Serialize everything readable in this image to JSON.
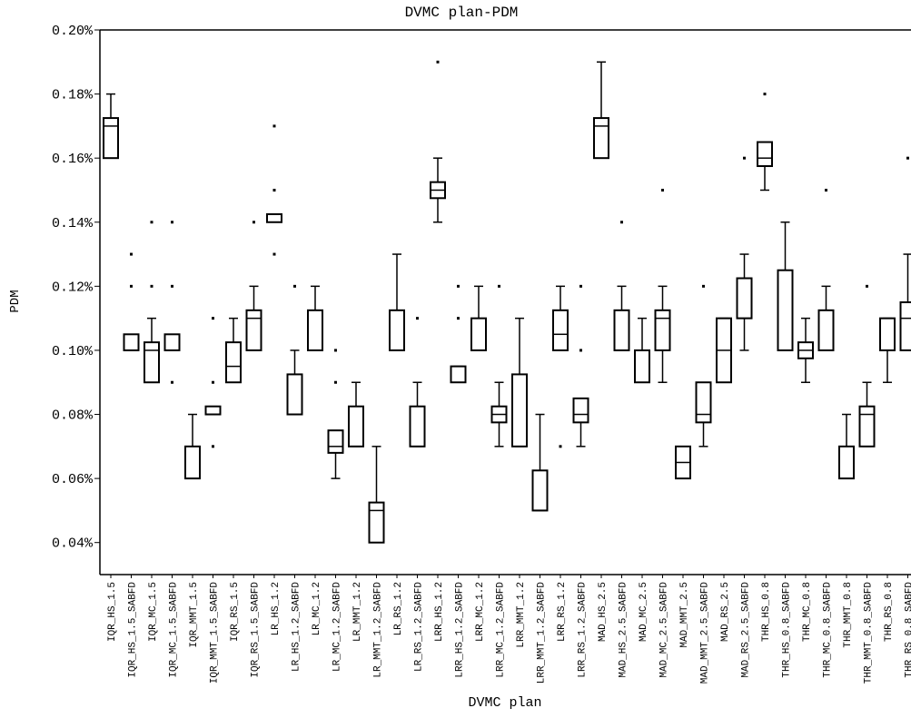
{
  "chart_data": {
    "type": "box",
    "title": "DVMC plan-PDM",
    "x_label": "DVMC plan",
    "y_label": "PDM",
    "categories": [
      "IQR_HS_1.5",
      "IQR_HS_1.5_SABFD",
      "IQR_MC_1.5",
      "IQR_MC_1.5_SABFD",
      "IQR_MMT_1.5",
      "IQR_MMT_1.5_SABFD",
      "IQR_RS_1.5",
      "IQR_RS_1.5_SABFD",
      "LR_HS_1.2",
      "LR_HS_1.2_SABFD",
      "LR_MC_1.2",
      "LR_MC_1.2_SABFD",
      "LR_MMT_1.2",
      "LR_MMT_1.2_SABFD",
      "LR_RS_1.2",
      "LR_RS_1.2_SABFD",
      "LRR_HS_1.2",
      "LRR_HS_1.2_SABFD",
      "LRR_MC_1.2",
      "LRR_MC_1.2_SABFD",
      "LRR_MMT_1.2",
      "LRR_MMT_1.2_SABFD",
      "LRR_RS_1.2",
      "LRR_RS_1.2_SABFD",
      "MAD_HS_2.5",
      "MAD_HS_2.5_SABFD",
      "MAD_MC_2.5",
      "MAD_MC_2.5_SABFD",
      "MAD_MMT_2.5",
      "MAD_MMT_2.5_SABFD",
      "MAD_RS_2.5",
      "MAD_RS_2.5_SABFD",
      "THR_HS_0.8",
      "THR_HS_0.8_SABFD",
      "THR_MC_0.8",
      "THR_MC_0.8_SABFD",
      "THR_MMT_0.8",
      "THR_MMT_0.8_SABFD",
      "THR_RS_0.8",
      "THR_RS_0.8_SABFD"
    ],
    "min": [
      0.16,
      0.1,
      0.09,
      0.1,
      0.06,
      0.08,
      0.09,
      0.1,
      0.14,
      0.08,
      0.1,
      0.06,
      0.07,
      0.04,
      0.1,
      0.07,
      0.14,
      0.09,
      0.1,
      0.07,
      0.07,
      0.05,
      0.1,
      0.07,
      0.16,
      0.1,
      0.09,
      0.09,
      0.06,
      0.07,
      0.09,
      0.1,
      0.15,
      0.1,
      0.09,
      0.1,
      0.06,
      0.07,
      0.09,
      0.1
    ],
    "q1": [
      0.16,
      0.1,
      0.09,
      0.1,
      0.06,
      0.08,
      0.09,
      0.1,
      0.14,
      0.08,
      0.1,
      0.068,
      0.07,
      0.04,
      0.1,
      0.07,
      0.1475,
      0.09,
      0.1,
      0.0775,
      0.07,
      0.05,
      0.1,
      0.0775,
      0.16,
      0.1,
      0.09,
      0.1,
      0.06,
      0.0775,
      0.09,
      0.11,
      0.1575,
      0.1,
      0.0975,
      0.1,
      0.06,
      0.07,
      0.1,
      0.1
    ],
    "median": [
      0.17,
      0.1,
      0.1,
      0.1,
      0.06,
      0.08,
      0.095,
      0.11,
      0.14,
      0.08,
      0.1,
      0.07,
      0.07,
      0.05,
      0.1,
      0.07,
      0.15,
      0.09,
      0.1,
      0.08,
      0.07,
      0.05,
      0.105,
      0.08,
      0.17,
      0.1,
      0.1,
      0.11,
      0.065,
      0.08,
      0.1,
      0.11,
      0.16,
      0.1,
      0.1,
      0.1,
      0.06,
      0.08,
      0.1,
      0.11
    ],
    "q3": [
      0.1725,
      0.105,
      0.1025,
      0.105,
      0.07,
      0.0825,
      0.1025,
      0.1125,
      0.1425,
      0.0925,
      0.1125,
      0.075,
      0.0825,
      0.0525,
      0.1125,
      0.0825,
      0.1525,
      0.095,
      0.11,
      0.0825,
      0.0925,
      0.0625,
      0.1125,
      0.085,
      0.1725,
      0.1125,
      0.1,
      0.1125,
      0.07,
      0.09,
      0.11,
      0.1225,
      0.165,
      0.125,
      0.1025,
      0.1125,
      0.07,
      0.0825,
      0.11,
      0.115
    ],
    "max": [
      0.18,
      0.105,
      0.11,
      0.105,
      0.08,
      0.0825,
      0.11,
      0.12,
      0.1425,
      0.1,
      0.12,
      0.075,
      0.09,
      0.07,
      0.13,
      0.09,
      0.16,
      0.095,
      0.12,
      0.09,
      0.11,
      0.08,
      0.12,
      0.085,
      0.19,
      0.12,
      0.11,
      0.12,
      0.07,
      0.09,
      0.11,
      0.13,
      0.165,
      0.14,
      0.11,
      0.12,
      0.08,
      0.09,
      0.11,
      0.13
    ],
    "outliers": [
      [],
      [
        0.13,
        0.12
      ],
      [
        0.14,
        0.12
      ],
      [
        0.14,
        0.12,
        0.09
      ],
      [],
      [
        0.11,
        0.09,
        0.07
      ],
      [],
      [
        0.14
      ],
      [
        0.17,
        0.15,
        0.13
      ],
      [
        0.12
      ],
      [],
      [
        0.1,
        0.09
      ],
      [],
      [],
      [],
      [
        0.11
      ],
      [
        0.19
      ],
      [
        0.12,
        0.11
      ],
      [],
      [
        0.12
      ],
      [],
      [],
      [
        0.07
      ],
      [
        0.12,
        0.1
      ],
      [],
      [
        0.14
      ],
      [],
      [
        0.15
      ],
      [],
      [
        0.12
      ],
      [],
      [
        0.16
      ],
      [
        0.18
      ],
      [],
      [],
      [
        0.15
      ],
      [],
      [
        0.12
      ],
      [],
      [
        0.16
      ]
    ],
    "ylim": [
      0.03,
      0.2
    ],
    "yticks": [
      {
        "value": 0.04,
        "label": "0.04%"
      },
      {
        "value": 0.06,
        "label": "0.06%"
      },
      {
        "value": 0.08,
        "label": "0.08%"
      },
      {
        "value": 0.1,
        "label": "0.10%"
      },
      {
        "value": 0.12,
        "label": "0.12%"
      },
      {
        "value": 0.14,
        "label": "0.14%"
      },
      {
        "value": 0.16,
        "label": "0.16%"
      },
      {
        "value": 0.18,
        "label": "0.18%"
      },
      {
        "value": 0.2,
        "label": "0.20%"
      }
    ],
    "color": "#000000"
  }
}
